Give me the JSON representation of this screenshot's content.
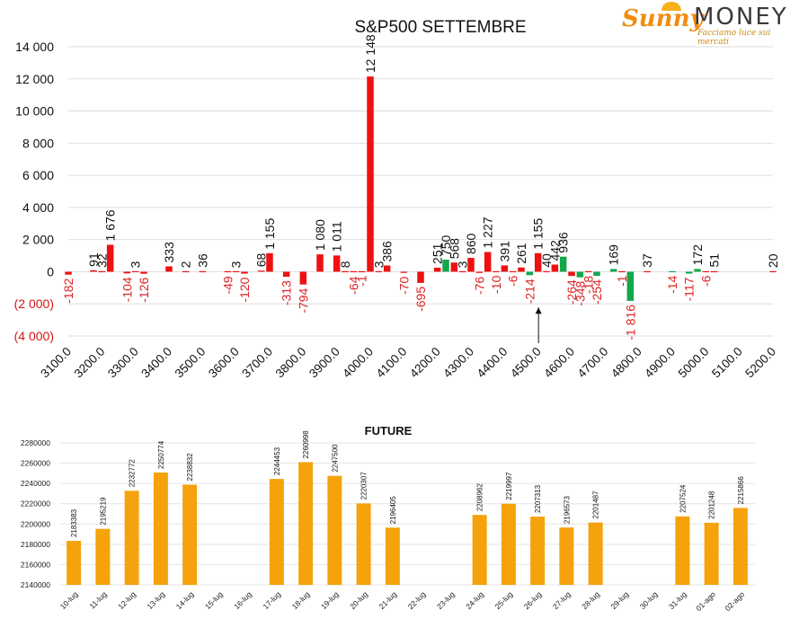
{
  "brand": {
    "name_left": "Sunny",
    "name_right": "MONEY",
    "tagline": "Facciamo luce sui mercati",
    "colors": {
      "orange": "#f28c0f",
      "gray": "#3a3a3a"
    }
  },
  "chart_data": [
    {
      "type": "bar",
      "title": "S&P500 SETTEMBRE",
      "xlabel": "",
      "ylabel": "",
      "ylim": [
        -4000,
        14000
      ],
      "yticks": [
        "(4 000)",
        "(2 000)",
        "0",
        "2 000",
        "4 000",
        "6 000",
        "8 000",
        "10 000",
        "12 000",
        "14 000"
      ],
      "ytick_values": [
        -4000,
        -2000,
        0,
        2000,
        4000,
        6000,
        8000,
        10000,
        12000,
        14000
      ],
      "categories": [
        "3100.0",
        "3200.0",
        "3300.0",
        "3400.0",
        "3500.0",
        "3600.0",
        "3700.0",
        "3800.0",
        "3900.0",
        "4000.0",
        "4100.0",
        "4200.0",
        "4300.0",
        "4400.0",
        "4500.0",
        "4600.0",
        "4700.0",
        "4800.0",
        "4900.0",
        "5000.0",
        "5100.0",
        "5200.0"
      ],
      "grid": true,
      "colors": {
        "red": "#ee1111",
        "green": "#13a64b",
        "label_red": "#dd2222",
        "label_black": "#111111"
      },
      "series": [
        {
          "bars": [
            {
              "x": 3100,
              "v": -182,
              "label": "-182",
              "c": "red"
            },
            {
              "x": 3175,
              "v": 91,
              "label": "91",
              "c": "red"
            },
            {
              "x": 3200,
              "v": 32,
              "label": "32",
              "c": "red"
            },
            {
              "x": 3225,
              "v": 1676,
              "label": "1 676",
              "c": "red"
            },
            {
              "x": 3275,
              "v": -104,
              "label": "-104",
              "c": "red"
            },
            {
              "x": 3300,
              "v": 3,
              "label": "3",
              "c": "red"
            },
            {
              "x": 3325,
              "v": -126,
              "label": "-126",
              "c": "red"
            },
            {
              "x": 3400,
              "v": 333,
              "label": "333",
              "c": "red"
            },
            {
              "x": 3450,
              "v": 2,
              "label": "2",
              "c": "red"
            },
            {
              "x": 3500,
              "v": 36,
              "label": "36",
              "c": "red"
            },
            {
              "x": 3575,
              "v": -49,
              "label": "-49",
              "c": "red"
            },
            {
              "x": 3600,
              "v": 3,
              "label": "3",
              "c": "red"
            },
            {
              "x": 3625,
              "v": -120,
              "label": "-120",
              "c": "red"
            },
            {
              "x": 3675,
              "v": 68,
              "label": "68",
              "c": "red"
            },
            {
              "x": 3700,
              "v": 1155,
              "label": "1 155",
              "c": "red"
            },
            {
              "x": 3750,
              "v": -313,
              "label": "-313",
              "c": "red"
            },
            {
              "x": 3800,
              "v": -794,
              "label": "-794",
              "c": "red"
            },
            {
              "x": 3850,
              "v": 1080,
              "label": "1 080",
              "c": "red"
            },
            {
              "x": 3900,
              "v": 1011,
              "label": "1 011",
              "c": "red"
            },
            {
              "x": 3925,
              "v": 8,
              "label": "8",
              "c": "red"
            },
            {
              "x": 3950,
              "v": -64,
              "label": "-64",
              "c": "red"
            },
            {
              "x": 3975,
              "v": -1,
              "label": "-1",
              "c": "red"
            },
            {
              "x": 4000,
              "v": 12148,
              "label": "12 148",
              "c": "red"
            },
            {
              "x": 4025,
              "v": 3,
              "label": "3",
              "c": "red"
            },
            {
              "x": 4050,
              "v": 386,
              "label": "386",
              "c": "red"
            },
            {
              "x": 4100,
              "v": -70,
              "label": "-70",
              "c": "red"
            },
            {
              "x": 4150,
              "v": -695,
              "label": "-695",
              "c": "red"
            },
            {
              "x": 4200,
              "v": 251,
              "label": "251",
              "c": "red"
            },
            {
              "x": 4225,
              "v": 750,
              "label": "750",
              "c": "green"
            },
            {
              "x": 4250,
              "v": 568,
              "label": "568",
              "c": "red"
            },
            {
              "x": 4275,
              "v": 3,
              "label": "3",
              "c": "red"
            },
            {
              "x": 4300,
              "v": 860,
              "label": "860",
              "c": "red"
            },
            {
              "x": 4325,
              "v": -76,
              "label": "-76",
              "c": "red"
            },
            {
              "x": 4350,
              "v": 1227,
              "label": "1 227",
              "c": "red"
            },
            {
              "x": 4375,
              "v": -10,
              "label": "-10",
              "c": "red"
            },
            {
              "x": 4400,
              "v": 391,
              "label": "391",
              "c": "red"
            },
            {
              "x": 4425,
              "v": -6,
              "label": "-6",
              "c": "red"
            },
            {
              "x": 4450,
              "v": 261,
              "label": "261",
              "c": "red"
            },
            {
              "x": 4475,
              "v": -214,
              "label": "-214",
              "c": "green"
            },
            {
              "x": 4500,
              "v": 1155,
              "label": "1 155",
              "c": "red"
            },
            {
              "x": 4525,
              "v": 40,
              "label": "40",
              "c": "red"
            },
            {
              "x": 4550,
              "v": 442,
              "label": "442",
              "c": "red"
            },
            {
              "x": 4575,
              "v": 936,
              "label": "936",
              "c": "green"
            },
            {
              "x": 4600,
              "v": -264,
              "label": "-264",
              "c": "red"
            },
            {
              "x": 4625,
              "v": -348,
              "label": "-348",
              "c": "green"
            },
            {
              "x": 4650,
              "v": -18,
              "label": "-18",
              "c": "red"
            },
            {
              "x": 4675,
              "v": -254,
              "label": "-254",
              "c": "green"
            },
            {
              "x": 4725,
              "v": 169,
              "label": "169",
              "c": "green"
            },
            {
              "x": 4750,
              "v": -1,
              "label": "-1",
              "c": "red"
            },
            {
              "x": 4775,
              "v": -1816,
              "label": "-1 816",
              "c": "green"
            },
            {
              "x": 4825,
              "v": 37,
              "label": "37",
              "c": "red"
            },
            {
              "x": 4900,
              "v": -14,
              "label": "-14",
              "c": "green"
            },
            {
              "x": 4950,
              "v": -117,
              "label": "-117",
              "c": "green"
            },
            {
              "x": 4975,
              "v": 172,
              "label": "172",
              "c": "green"
            },
            {
              "x": 5000,
              "v": -6,
              "label": "-6",
              "c": "red"
            },
            {
              "x": 5025,
              "v": 51,
              "label": "51",
              "c": "red"
            },
            {
              "x": 5200,
              "v": 20,
              "label": "20",
              "c": "red"
            }
          ]
        }
      ],
      "annotation": {
        "type": "arrow",
        "x": 4500,
        "from_value": -4000,
        "to_value": -2000
      }
    },
    {
      "type": "bar",
      "title": "FUTURE",
      "xlabel": "",
      "ylabel": "",
      "ylim": [
        2140000,
        2280000
      ],
      "yticks": [
        "2140000",
        "2160000",
        "2180000",
        "2200000",
        "2220000",
        "2240000",
        "2260000",
        "2280000"
      ],
      "ytick_values": [
        2140000,
        2160000,
        2180000,
        2200000,
        2220000,
        2240000,
        2260000,
        2280000
      ],
      "grid": true,
      "color": "#f5a20c",
      "categories": [
        "10-lug",
        "11-lug",
        "12-lug",
        "13-lug",
        "14-lug",
        "15-lug",
        "16-lug",
        "17-lug",
        "18-lug",
        "19-lug",
        "20-lug",
        "21-lug",
        "22-lug",
        "23-lug",
        "24-lug",
        "25-lug",
        "26-lug",
        "27-lug",
        "28-lug",
        "29-lug",
        "30-lug",
        "31-lug",
        "01-ago",
        "02-ago"
      ],
      "values": [
        2183383,
        2195219,
        2232772,
        2250774,
        2238832,
        null,
        null,
        2244453,
        2260998,
        2247500,
        2220307,
        2196405,
        null,
        null,
        2208962,
        2219997,
        2207313,
        2196573,
        2201487,
        null,
        null,
        2207524,
        2201248,
        2215866
      ],
      "value_labels": [
        "2183383",
        "2195219",
        "2232772",
        "2250774",
        "2238832",
        "",
        "",
        "2244453",
        "2260998",
        "2247500",
        "2220307",
        "2196405",
        "",
        "",
        "2208962",
        "2219997",
        "2207313",
        "2196573",
        "2201487",
        "",
        "",
        "2207524",
        "2201248",
        "2215866"
      ]
    }
  ]
}
